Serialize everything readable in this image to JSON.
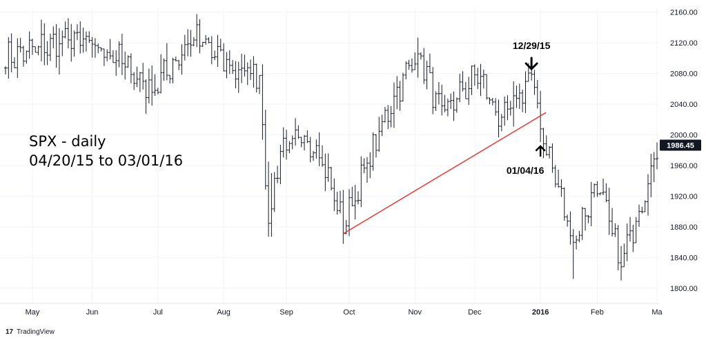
{
  "chart_data": {
    "type": "ohlc",
    "symbol_title_line1": "SPX - daily",
    "symbol_title_line2": "04/20/15 to 03/01/16",
    "ylim": [
      1780,
      2165
    ],
    "y_ticks": [
      "1800.00",
      "1840.00",
      "1880.00",
      "1920.00",
      "1960.00",
      "2000.00",
      "2040.00",
      "2080.00",
      "2120.00",
      "2160.00"
    ],
    "month_labels": [
      {
        "label": "May",
        "bold": false
      },
      {
        "label": "Jun",
        "bold": false
      },
      {
        "label": "Jul",
        "bold": false
      },
      {
        "label": "Aug",
        "bold": false
      },
      {
        "label": "Sep",
        "bold": false
      },
      {
        "label": "Oct",
        "bold": false
      },
      {
        "label": "Nov",
        "bold": false
      },
      {
        "label": "Dec",
        "bold": false
      },
      {
        "label": "2016",
        "bold": true
      },
      {
        "label": "Feb",
        "bold": false
      },
      {
        "label": "Ma",
        "bold": false
      }
    ],
    "last_price": "1986.45",
    "bar_color": "#131722",
    "trendline_color": "#e53935",
    "trendline": {
      "from": {
        "date": "2015-09-29",
        "price": 1871
      },
      "to": {
        "date": "2016-01-04",
        "price": 2029
      }
    },
    "annotations": [
      {
        "text": "12/29/15",
        "date": "2015-12-29",
        "arrow": "down"
      },
      {
        "text": "01/04/16",
        "date": "2016-01-04",
        "arrow": "up"
      }
    ],
    "anchors": [
      {
        "date": "2015-04-20",
        "price": 2100
      },
      {
        "date": "2015-05-20",
        "price": 2125
      },
      {
        "date": "2015-06-10",
        "price": 2105
      },
      {
        "date": "2015-06-29",
        "price": 2058
      },
      {
        "date": "2015-07-20",
        "price": 2128
      },
      {
        "date": "2015-08-06",
        "price": 2085
      },
      {
        "date": "2015-08-19",
        "price": 2080
      },
      {
        "date": "2015-08-24",
        "price": 1880
      },
      {
        "date": "2015-08-28",
        "price": 1985
      },
      {
        "date": "2015-09-16",
        "price": 1990
      },
      {
        "date": "2015-09-29",
        "price": 1882
      },
      {
        "date": "2015-10-22",
        "price": 2050
      },
      {
        "date": "2015-11-03",
        "price": 2108
      },
      {
        "date": "2015-11-13",
        "price": 2025
      },
      {
        "date": "2015-12-02",
        "price": 2080
      },
      {
        "date": "2015-12-14",
        "price": 2015
      },
      {
        "date": "2015-12-29",
        "price": 2078
      },
      {
        "date": "2016-01-04",
        "price": 2012
      },
      {
        "date": "2016-01-20",
        "price": 1860
      },
      {
        "date": "2016-02-01",
        "price": 1938
      },
      {
        "date": "2016-02-11",
        "price": 1830
      },
      {
        "date": "2016-03-01",
        "price": 1978
      }
    ]
  },
  "branding": {
    "name": "TradingView",
    "logo_text": "17"
  }
}
